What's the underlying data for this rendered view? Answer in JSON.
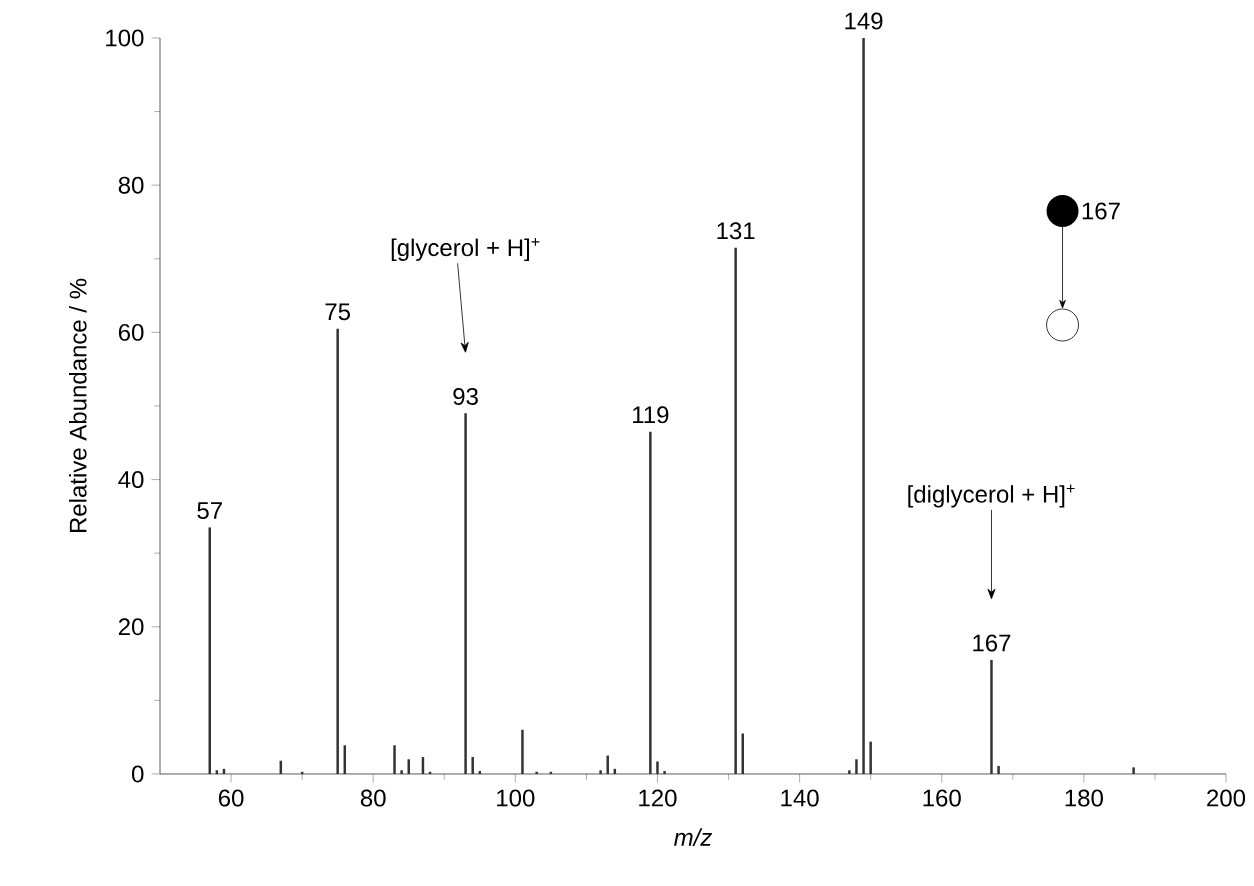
{
  "chart_data": {
    "type": "bar",
    "xlabel": "m/z",
    "ylabel": "Relative Abundance / %",
    "x": [
      57,
      58,
      59,
      67,
      70,
      75,
      76,
      83,
      84,
      85,
      87,
      88,
      93,
      94,
      95,
      101,
      103,
      105,
      112,
      113,
      114,
      119,
      120,
      121,
      131,
      132,
      147,
      148,
      149,
      150,
      167,
      168,
      187
    ],
    "values": [
      33.5,
      0.5,
      0.7,
      1.8,
      0.3,
      60.5,
      3.9,
      3.9,
      0.5,
      2,
      2.3,
      0.3,
      49,
      2.3,
      0.4,
      6,
      0.3,
      0.3,
      0.5,
      2.5,
      0.7,
      46.5,
      1.7,
      0.4,
      71.5,
      5.5,
      0.5,
      2,
      100,
      4.4,
      15.5,
      1.1,
      0.9
    ],
    "color": "#333333",
    "xlim": [
      50,
      200
    ],
    "xticks": [
      60,
      80,
      100,
      120,
      140,
      160,
      180,
      200
    ],
    "ylim": [
      0,
      100
    ],
    "yticks": [
      0,
      20,
      40,
      60,
      80,
      100
    ],
    "annotations": [
      {
        "text": "57",
        "x": 57,
        "y": 33.5
      },
      {
        "text": "75",
        "x": 75,
        "y": 60.5
      },
      {
        "text": "93",
        "x": 93,
        "y": 49
      },
      {
        "text": "119",
        "x": 119,
        "y": 46.5
      },
      {
        "text": "131",
        "x": 131,
        "y": 71.5
      },
      {
        "text": "149",
        "x": 149,
        "y": 100
      },
      {
        "text": "167",
        "x": 167,
        "y": 15.5
      },
      "[glycerol + H]$^{+}$",
      "[diglycerol + H]$^{+}$",
      "167"
    ]
  }
}
